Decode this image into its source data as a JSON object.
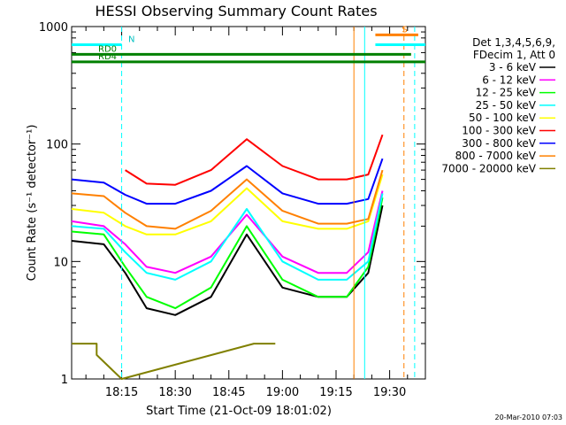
{
  "chart_data": {
    "type": "line",
    "title": "HESSI Observing Summary Count Rates",
    "xlabel": "Start Time (21-Oct-09 18:01:02)",
    "ylabel": "Count Rate (s⁻¹ detector⁻¹)",
    "y_scale": "log",
    "ylim": [
      1,
      1000
    ],
    "xlim": [
      "18:01",
      "19:40"
    ],
    "x_ticks": [
      "18:15",
      "18:30",
      "18:45",
      "19:00",
      "19:15",
      "19:30"
    ],
    "y_ticks": [
      "1",
      "10",
      "100",
      "1000"
    ],
    "legend": {
      "placement": "right",
      "header": [
        "Det 1,3,4,5,6,9,",
        "FDecim 1, Att 0"
      ],
      "entries": [
        {
          "label": "3 - 6 keV",
          "color": "#000000"
        },
        {
          "label": "6 - 12 keV",
          "color": "#ff00ff"
        },
        {
          "label": "12 - 25 keV",
          "color": "#00ff00"
        },
        {
          "label": "25 - 50 keV",
          "color": "#00ffff"
        },
        {
          "label": "50 - 100 keV",
          "color": "#ffff00"
        },
        {
          "label": "100 - 300 keV",
          "color": "#ff0000"
        },
        {
          "label": "300 - 800 keV",
          "color": "#0000ff"
        },
        {
          "label": "800 - 7000 keV",
          "color": "#ff8000"
        },
        {
          "label": "7000 - 20000 keV",
          "color": "#808000"
        }
      ]
    },
    "series": [
      {
        "name": "3 - 6 keV",
        "color": "#000000",
        "x": [
          "18:01",
          "18:10",
          "18:16",
          "18:22",
          "18:30",
          "18:40",
          "18:50",
          "19:00",
          "19:10",
          "19:18",
          "19:24",
          "19:28"
        ],
        "values": [
          15,
          14,
          8,
          4,
          3.5,
          5,
          17,
          6,
          5,
          5,
          8,
          30
        ]
      },
      {
        "name": "6 - 12 keV",
        "color": "#ff00ff",
        "x": [
          "18:01",
          "18:10",
          "18:16",
          "18:22",
          "18:30",
          "18:40",
          "18:50",
          "19:00",
          "19:10",
          "19:18",
          "19:24",
          "19:28"
        ],
        "values": [
          22,
          20,
          14,
          9,
          8,
          11,
          25,
          11,
          8,
          8,
          12,
          40
        ]
      },
      {
        "name": "12 - 25 keV",
        "color": "#00ff00",
        "x": [
          "18:01",
          "18:10",
          "18:16",
          "18:22",
          "18:30",
          "18:40",
          "18:50",
          "19:00",
          "19:10",
          "19:18",
          "19:24",
          "19:28"
        ],
        "values": [
          18,
          17,
          9,
          5,
          4,
          6,
          20,
          7,
          5,
          5,
          9,
          35
        ]
      },
      {
        "name": "25 - 50 keV",
        "color": "#00ffff",
        "x": [
          "18:01",
          "18:10",
          "18:16",
          "18:22",
          "18:30",
          "18:40",
          "18:50",
          "19:00",
          "19:10",
          "19:18",
          "19:24",
          "19:28"
        ],
        "values": [
          20,
          19,
          12,
          8,
          7,
          10,
          28,
          10,
          7,
          7,
          10,
          38
        ]
      },
      {
        "name": "50 - 100 keV",
        "color": "#ffff00",
        "x": [
          "18:01",
          "18:10",
          "18:16",
          "18:22",
          "18:30",
          "18:40",
          "18:50",
          "19:00",
          "19:10",
          "19:18",
          "19:24",
          "19:28"
        ],
        "values": [
          28,
          26,
          20,
          17,
          17,
          22,
          42,
          22,
          19,
          19,
          22,
          55
        ]
      },
      {
        "name": "100 - 300 keV",
        "color": "#ff0000",
        "x": [
          "18:16",
          "18:22",
          "18:30",
          "18:40",
          "18:50",
          "19:00",
          "19:10",
          "19:18",
          "19:24",
          "19:28"
        ],
        "values": [
          60,
          46,
          45,
          60,
          110,
          65,
          50,
          50,
          55,
          120
        ]
      },
      {
        "name": "300 - 800 keV",
        "color": "#0000ff",
        "x": [
          "18:01",
          "18:10",
          "18:16",
          "18:22",
          "18:30",
          "18:40",
          "18:50",
          "19:00",
          "19:10",
          "19:18",
          "19:24",
          "19:28"
        ],
        "values": [
          50,
          47,
          37,
          31,
          31,
          40,
          65,
          38,
          31,
          31,
          34,
          75
        ]
      },
      {
        "name": "800 - 7000 keV",
        "color": "#ff8000",
        "x": [
          "18:01",
          "18:10",
          "18:16",
          "18:22",
          "18:30",
          "18:40",
          "18:50",
          "19:00",
          "19:10",
          "19:18",
          "19:24",
          "19:28"
        ],
        "values": [
          38,
          36,
          26,
          20,
          19,
          27,
          50,
          27,
          21,
          21,
          23,
          60
        ]
      },
      {
        "name": "7000 - 20000 keV",
        "color": "#808000",
        "x": [
          "18:01",
          "18:08",
          "18:08",
          "18:15",
          "18:52",
          "18:55",
          "18:58"
        ],
        "values": [
          2,
          2,
          1.6,
          1,
          2,
          2,
          2
        ]
      }
    ],
    "markers": {
      "bars": [
        {
          "label": "N",
          "color": "#00ffff",
          "x_start": "18:01",
          "x_end": "18:15",
          "y": 700
        },
        {
          "label": "",
          "color": "#00ffff",
          "x_start": "19:26",
          "x_end": "19:40",
          "y": 700
        },
        {
          "label": "RD0",
          "color": "#008000",
          "x_start": "18:01",
          "x_end": "19:36",
          "y": 580
        },
        {
          "label": "RD4",
          "color": "#008000",
          "x_start": "18:01",
          "x_end": "19:40",
          "y": 500
        },
        {
          "label": "S",
          "color": "#ff8000",
          "x_start": "19:26",
          "x_end": "19:38",
          "y": 850
        }
      ],
      "vertical_lines": [
        {
          "x": "18:15",
          "color": "#00ffff",
          "style": "dashed"
        },
        {
          "x": "19:20",
          "color": "#ff8000",
          "style": "solid"
        },
        {
          "x": "19:23",
          "color": "#00ffff",
          "style": "solid"
        },
        {
          "x": "19:34",
          "color": "#ff8000",
          "style": "dashed"
        },
        {
          "x": "19:37",
          "color": "#00ffff",
          "style": "dashed"
        }
      ]
    },
    "footnote": "20-Mar-2010 07:03"
  }
}
